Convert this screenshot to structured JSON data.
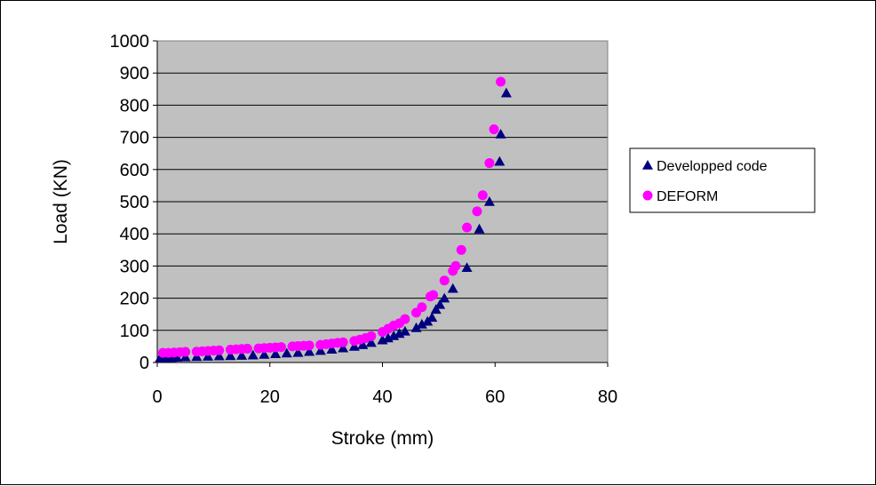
{
  "chart_data": {
    "type": "scatter",
    "xlabel": "Stroke (mm)",
    "ylabel": "Load (KN)",
    "xlim": [
      0,
      80
    ],
    "ylim": [
      0,
      1000
    ],
    "x_ticks": [
      "0",
      "20",
      "40",
      "60",
      "80"
    ],
    "y_ticks": [
      "0",
      "100",
      "200",
      "300",
      "400",
      "500",
      "600",
      "700",
      "800",
      "900",
      "1000"
    ],
    "grid": "horizontal",
    "plot_background": "#c0c0c0",
    "legend_position": "right",
    "series": [
      {
        "name": "Developped code",
        "marker": "triangle",
        "color": "#000080",
        "x": [
          0.5,
          1.5,
          2.5,
          3.5,
          5,
          7,
          9,
          11,
          13,
          15,
          17,
          19,
          21,
          23,
          25,
          27,
          29,
          31,
          33,
          35,
          36.5,
          38,
          40,
          41,
          42,
          43,
          44,
          46,
          47,
          48,
          48.8,
          49.5,
          50.2,
          51,
          52.5,
          55,
          57.2,
          59,
          60.8,
          61,
          62
        ],
        "y": [
          14,
          14,
          15,
          16,
          17,
          18,
          19,
          20,
          21,
          22,
          23,
          25,
          27,
          29,
          31,
          34,
          37,
          41,
          45,
          50,
          55,
          62,
          70,
          76,
          83,
          90,
          97,
          108,
          119,
          128,
          140,
          165,
          180,
          200,
          230,
          295,
          415,
          500,
          625,
          710,
          838
        ]
      },
      {
        "name": "DEFORM",
        "marker": "circle",
        "color": "#ff00ff",
        "x": [
          1,
          2,
          3,
          4,
          5,
          7,
          8,
          9,
          10,
          11,
          13,
          14,
          15,
          16,
          18,
          19,
          20,
          21,
          22,
          24,
          25,
          26,
          27,
          29,
          30,
          31,
          32,
          33,
          35,
          36,
          37,
          38,
          40,
          41,
          42,
          43,
          44,
          46,
          47,
          48.5,
          49,
          51,
          52.5,
          53,
          54,
          55,
          56.8,
          57.8,
          59,
          59.8,
          61
        ],
        "y": [
          30,
          30,
          31,
          32,
          33,
          34,
          35,
          36,
          37,
          38,
          40,
          41,
          42,
          43,
          44,
          45,
          46,
          47,
          48,
          50,
          51,
          52,
          53,
          55,
          57,
          59,
          61,
          63,
          67,
          71,
          76,
          82,
          95,
          105,
          115,
          122,
          135,
          155,
          172,
          205,
          210,
          255,
          285,
          300,
          350,
          420,
          470,
          520,
          620,
          725,
          873
        ]
      }
    ]
  }
}
